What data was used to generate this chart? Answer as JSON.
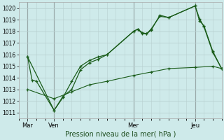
{
  "title": "Pression niveau de la mer( hPa )",
  "background_color": "#ceeaea",
  "grid_color": "#b8d0d0",
  "vline_color": "#707878",
  "line_color": "#1a5c1a",
  "ylim": [
    1010.5,
    1020.5
  ],
  "yticks": [
    1011,
    1012,
    1013,
    1014,
    1015,
    1016,
    1017,
    1018,
    1019,
    1020
  ],
  "xlim": [
    0,
    23
  ],
  "day_positions": [
    1,
    4,
    13,
    20
  ],
  "day_labels": [
    "Mar",
    "Ven",
    "Mer",
    "Jeu"
  ],
  "vline_positions": [
    1,
    4,
    13,
    20
  ],
  "series1_x": [
    1,
    1.5,
    2,
    4,
    5,
    6,
    7,
    8,
    9,
    10,
    13,
    13.5,
    14,
    14.5,
    15,
    16,
    17,
    20,
    20.5,
    21,
    22,
    23
  ],
  "series1_y": [
    1015.8,
    1013.8,
    1013.7,
    1011.2,
    1012.4,
    1013.0,
    1014.7,
    1015.3,
    1015.6,
    1016.0,
    1018.0,
    1018.2,
    1017.8,
    1017.8,
    1018.1,
    1019.4,
    1019.2,
    1020.2,
    1019.1,
    1018.4,
    1016.2,
    1014.8
  ],
  "series2_x": [
    1,
    4,
    5,
    6,
    7,
    8,
    9,
    10,
    13,
    13.5,
    14,
    14.5,
    15,
    16,
    17,
    20,
    20.5,
    21,
    22,
    23
  ],
  "series2_y": [
    1015.8,
    1011.2,
    1012.3,
    1013.7,
    1015.0,
    1015.5,
    1015.8,
    1016.0,
    1018.0,
    1018.2,
    1017.9,
    1017.8,
    1018.2,
    1019.3,
    1019.2,
    1020.2,
    1018.9,
    1018.5,
    1016.3,
    1014.8
  ],
  "series3_x": [
    1,
    4,
    6,
    8,
    10,
    13,
    15,
    17,
    20,
    22,
    23
  ],
  "series3_y": [
    1013.0,
    1012.2,
    1012.8,
    1013.4,
    1013.7,
    1014.2,
    1014.5,
    1014.8,
    1014.9,
    1015.0,
    1014.8
  ]
}
